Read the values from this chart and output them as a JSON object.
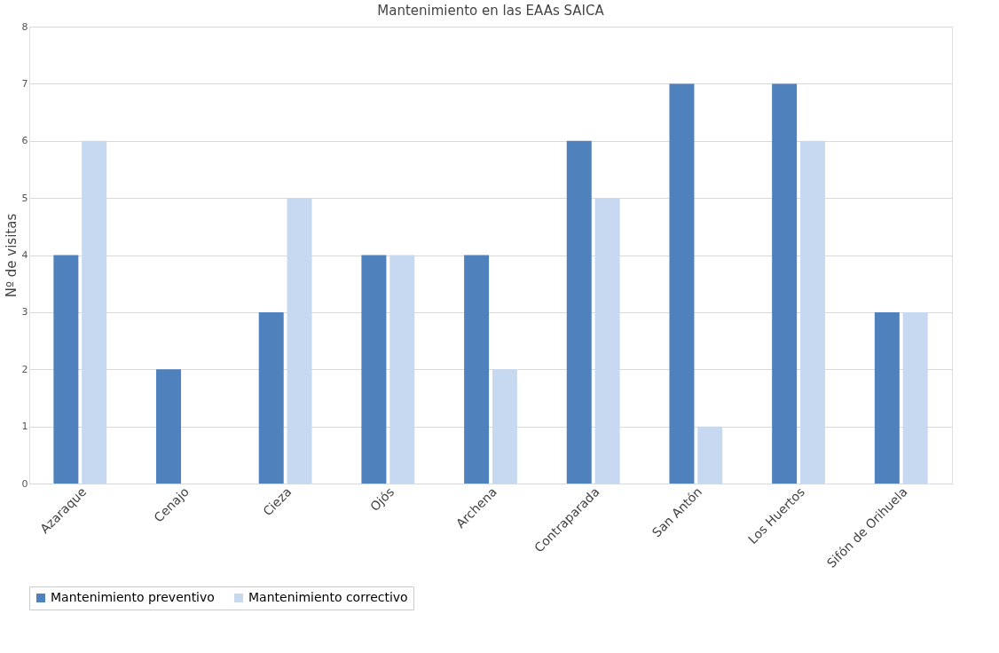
{
  "chart_data": {
    "type": "bar",
    "title": "Mantenimiento en las EAAs SAICA",
    "ylabel": "Nº de visitas",
    "categories": [
      "Azaraque",
      "Cenajo",
      "Cieza",
      "Ojós",
      "Archena",
      "Contraparada",
      "San Antón",
      "Los Huertos",
      "Sifón de Orihuela"
    ],
    "series": [
      {
        "name": "Mantenimiento preventivo",
        "color": "#4f81bd",
        "values": [
          4,
          2,
          3,
          4,
          4,
          6,
          7,
          7,
          3
        ]
      },
      {
        "name": "Mantenimiento correctivo",
        "color": "#c6d9f0",
        "values": [
          6,
          0,
          5,
          4,
          2,
          5,
          1,
          6,
          3
        ]
      }
    ],
    "ylim": [
      0,
      8
    ],
    "yticks": [
      0,
      1,
      2,
      3,
      4,
      5,
      6,
      7,
      8
    ],
    "grid": "y",
    "legend": "bottom"
  }
}
